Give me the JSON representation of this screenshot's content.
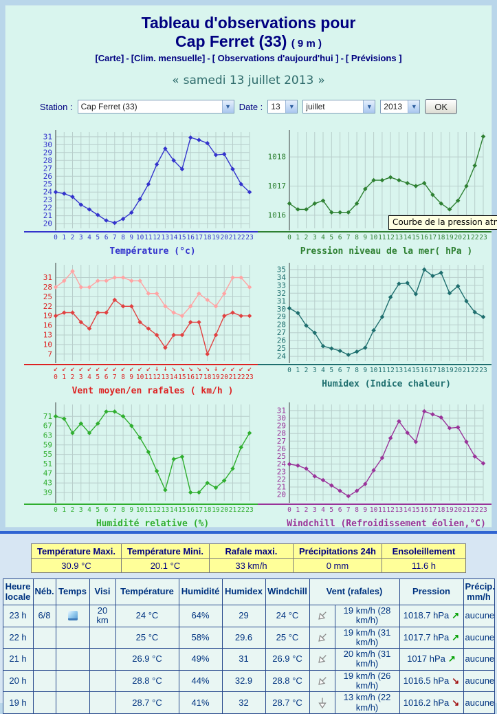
{
  "header": {
    "title_line1": "Tableau d'observations pour",
    "title_line2": "Cap Ferret (33)",
    "altitude": "( 9 m )",
    "nav_links": [
      "[Carte]",
      "[Clim. mensuelle]",
      "[ Observations d'aujourd'hui ]",
      "[ Prévisions ]"
    ],
    "nav_separator": "-",
    "prev_arrow": "«",
    "date_text": "samedi 13 juillet 2013",
    "next_arrow": "»"
  },
  "station_form": {
    "station_label": "Station :",
    "station_value": "Cap Ferret (33)",
    "date_label": "Date :",
    "day_value": "13",
    "month_value": "juillet",
    "year_value": "2013",
    "ok_label": "OK",
    "dropdown_icon": "▼"
  },
  "tooltip_text": "Courbe de la pression atmosphériq",
  "x_hours": [
    0,
    1,
    2,
    3,
    4,
    5,
    6,
    7,
    8,
    9,
    10,
    11,
    12,
    13,
    14,
    15,
    16,
    17,
    18,
    19,
    20,
    21,
    22,
    23
  ],
  "chart_data": [
    {
      "name": "temperature",
      "type": "line",
      "title": "Température (°c)",
      "color": "#3333cc",
      "y_ticks": [
        20,
        21,
        22,
        23,
        24,
        25,
        26,
        27,
        28,
        29,
        30,
        31
      ],
      "ylim": [
        19.4,
        31.6
      ],
      "values": [
        24,
        23.8,
        23.4,
        22.4,
        21.8,
        21.1,
        20.4,
        20.1,
        20.6,
        21.4,
        23.1,
        25,
        27.5,
        29.5,
        28,
        26.9,
        30.9,
        30.6,
        30.2,
        28.7,
        28.8,
        26.9,
        25,
        24
      ]
    },
    {
      "name": "pressure",
      "type": "line",
      "title": "Pression niveau de la mer( hPa )",
      "color": "#2e8032",
      "y_ticks": [
        1016,
        1017,
        1018
      ],
      "ylim": [
        1015.55,
        1018.85
      ],
      "values": [
        1016.4,
        1016.2,
        1016.2,
        1016.4,
        1016.5,
        1016.1,
        1016.1,
        1016.1,
        1016.4,
        1016.9,
        1017.2,
        1017.2,
        1017.3,
        1017.2,
        1017.1,
        1017,
        1017.1,
        1016.7,
        1016.4,
        1016.2,
        1016.5,
        1017,
        1017.7,
        1018.7
      ]
    },
    {
      "name": "wind",
      "type": "line",
      "title": "Vent moyen/en rafales ( km/h )",
      "color": "#dd2222",
      "y_ticks": [
        7,
        10,
        13,
        16,
        19,
        22,
        25,
        28,
        31
      ],
      "ylim": [
        4.8,
        35
      ],
      "series": [
        {
          "name": "vent moyen",
          "color": "#e04040",
          "values": [
            19,
            20,
            20,
            17,
            15,
            20,
            20,
            24,
            22,
            22,
            17,
            15,
            13,
            9,
            13,
            13,
            17,
            17,
            7,
            13,
            19,
            20,
            19,
            19
          ]
        },
        {
          "name": "rafales",
          "color": "#ffa3a3",
          "values": [
            28,
            30,
            33,
            28,
            28,
            30,
            30,
            31,
            31,
            30,
            30,
            26,
            26,
            22,
            20,
            19,
            22,
            26,
            24,
            22,
            26,
            31,
            31,
            28
          ]
        }
      ],
      "wind_arrows": [
        "↙",
        "↙",
        "↙",
        "↙",
        "↙",
        "↙",
        "↙",
        "↙",
        "↙",
        "↙",
        "↙",
        "↙",
        "↓",
        "↓",
        "↘",
        "↘",
        "↘",
        "↘",
        "↘",
        "↓",
        "↙",
        "↙",
        "↙",
        "↙"
      ]
    },
    {
      "name": "humidex",
      "type": "line",
      "title": "Humidex (Indice chaleur)",
      "color": "#1e6e6e",
      "y_ticks": [
        24,
        25,
        26,
        27,
        28,
        29,
        30,
        31,
        32,
        33,
        34,
        35
      ],
      "ylim": [
        23.4,
        35.6
      ],
      "values": [
        30.1,
        29.5,
        27.9,
        27,
        25.3,
        25,
        24.7,
        24.2,
        24.6,
        25.1,
        27.3,
        29,
        31.5,
        33.2,
        33.3,
        31.9,
        35,
        34.2,
        34.6,
        32,
        32.9,
        31,
        29.6,
        29
      ]
    },
    {
      "name": "humidity",
      "type": "line",
      "title": "Humidité relative (%)",
      "color": "#2fae2f",
      "y_ticks": [
        39,
        43,
        47,
        51,
        55,
        59,
        63,
        67,
        71
      ],
      "ylim": [
        35.5,
        76
      ],
      "values": [
        71,
        70,
        64,
        68,
        64,
        68,
        73,
        73,
        71,
        67,
        62,
        56,
        48,
        40,
        53,
        54,
        39,
        39,
        43,
        41,
        44,
        49,
        58,
        64
      ]
    },
    {
      "name": "windchill",
      "type": "line",
      "title": "Windchill (Refroidissement éolien,°C)",
      "color": "#993399",
      "y_ticks": [
        20,
        21,
        22,
        23,
        24,
        25,
        26,
        27,
        28,
        29,
        30,
        31
      ],
      "ylim": [
        19.2,
        31.8
      ],
      "values": [
        24,
        23.8,
        23.4,
        22.4,
        21.9,
        21.2,
        20.5,
        19.8,
        20.5,
        21.4,
        23.2,
        24.8,
        27.4,
        29.6,
        28.1,
        26.9,
        30.9,
        30.5,
        30.1,
        28.7,
        28.8,
        26.9,
        25,
        24.1
      ]
    }
  ],
  "summary_table": {
    "headers": [
      "Température Maxi.",
      "Température Mini.",
      "Rafale maxi.",
      "Précipitations 24h",
      "Ensoleillement"
    ],
    "values": [
      "30.9 °C",
      "20.1 °C",
      "33 km/h",
      "0 mm",
      "11.6 h"
    ]
  },
  "obs_table": {
    "headers": [
      "Heure locale",
      "Néb.",
      "Temps",
      "Visi",
      "Température",
      "Humidité",
      "Humidex",
      "Windchill",
      "Vent (rafales)",
      "Pression",
      "Précip. mm/h"
    ],
    "rows": [
      {
        "heure": "23 h",
        "neb": "6/8",
        "temps_icon": "night",
        "visi": "20 km",
        "temperature": "24 °C",
        "humidite": "64%",
        "humidex": "29",
        "windchill": "24 °C",
        "vent_direction": "down-left",
        "vent": "19 km/h (28 km/h)",
        "pression": "1018.7 hPa",
        "pression_trend": "up",
        "precip": "aucune"
      },
      {
        "heure": "22 h",
        "neb": "",
        "temps_icon": "",
        "visi": "",
        "temperature": "25 °C",
        "humidite": "58%",
        "humidex": "29.6",
        "windchill": "25 °C",
        "vent_direction": "down-left",
        "vent": "19 km/h (31 km/h)",
        "pression": "1017.7 hPa",
        "pression_trend": "up",
        "precip": "aucune"
      },
      {
        "heure": "21 h",
        "neb": "",
        "temps_icon": "",
        "visi": "",
        "temperature": "26.9 °C",
        "humidite": "49%",
        "humidex": "31",
        "windchill": "26.9 °C",
        "vent_direction": "down-left",
        "vent": "20 km/h (31 km/h)",
        "pression": "1017 hPa",
        "pression_trend": "up",
        "precip": "aucune"
      },
      {
        "heure": "20 h",
        "neb": "",
        "temps_icon": "",
        "visi": "",
        "temperature": "28.8 °C",
        "humidite": "44%",
        "humidex": "32.9",
        "windchill": "28.8 °C",
        "vent_direction": "down-left",
        "vent": "19 km/h (26 km/h)",
        "pression": "1016.5 hPa",
        "pression_trend": "down",
        "precip": "aucune"
      },
      {
        "heure": "19 h",
        "neb": "",
        "temps_icon": "",
        "visi": "",
        "temperature": "28.7 °C",
        "humidite": "41%",
        "humidex": "32",
        "windchill": "28.7 °C",
        "vent_direction": "down",
        "vent": "13 km/h (22 km/h)",
        "pression": "1016.2 hPa",
        "pression_trend": "down",
        "precip": "aucune"
      }
    ]
  },
  "colors": {
    "navy": "#000080",
    "panel_bg": "#d9f5ee",
    "page_bg": "#b9d6ea",
    "divider_blue": "#2f64d2",
    "summary_bg": "#ffff99",
    "table_border": "#26488c",
    "tooltip_bg": "#ffffe1",
    "grid": "#b8cecb"
  }
}
